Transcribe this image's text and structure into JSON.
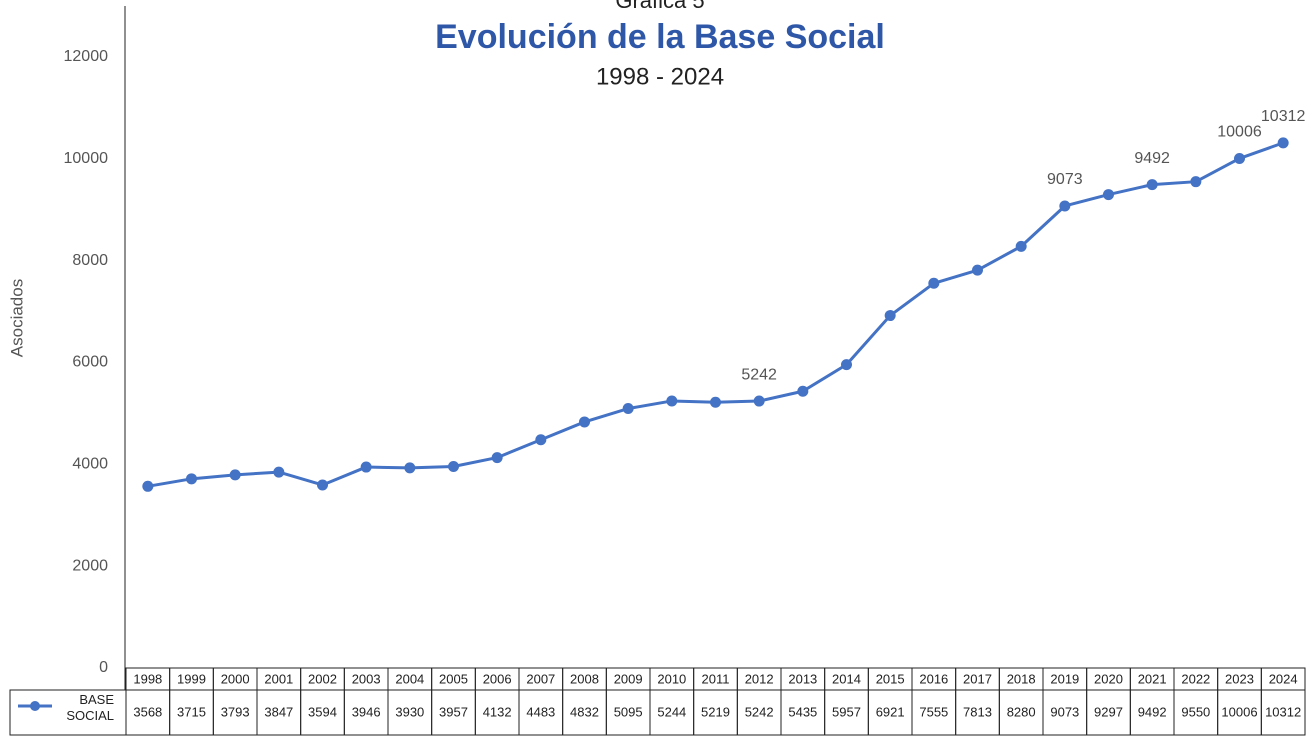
{
  "chart_data": {
    "type": "line",
    "pretitle": "Gráfica 5",
    "title": "Evolución de la Base Social",
    "subtitle": "1998 - 2024",
    "y_label": "Asociados",
    "categories": [
      "1998",
      "1999",
      "2000",
      "2001",
      "2002",
      "2003",
      "2004",
      "2005",
      "2006",
      "2007",
      "2008",
      "2009",
      "2010",
      "2011",
      "2012",
      "2013",
      "2014",
      "2015",
      "2016",
      "2017",
      "2018",
      "2019",
      "2020",
      "2021",
      "2022",
      "2023",
      "2024"
    ],
    "series": [
      {
        "name": "BASE SOCIAL",
        "color": "#4472c4",
        "values": [
          3568,
          3715,
          3793,
          3847,
          3594,
          3946,
          3930,
          3957,
          4132,
          4483,
          4832,
          5095,
          5244,
          5219,
          5242,
          5435,
          5957,
          6921,
          7555,
          7813,
          8280,
          9073,
          9297,
          9492,
          9550,
          10006,
          10312
        ],
        "value_labels": [
          null,
          null,
          null,
          null,
          null,
          null,
          null,
          null,
          null,
          null,
          null,
          null,
          null,
          null,
          "5242",
          null,
          null,
          null,
          null,
          null,
          null,
          "9073",
          null,
          "9492",
          null,
          "10006",
          "10312"
        ]
      }
    ],
    "ylim": [
      0,
      13000
    ],
    "yticks": [
      0,
      2000,
      4000,
      6000,
      8000,
      10000,
      12000
    ],
    "grid": false
  }
}
